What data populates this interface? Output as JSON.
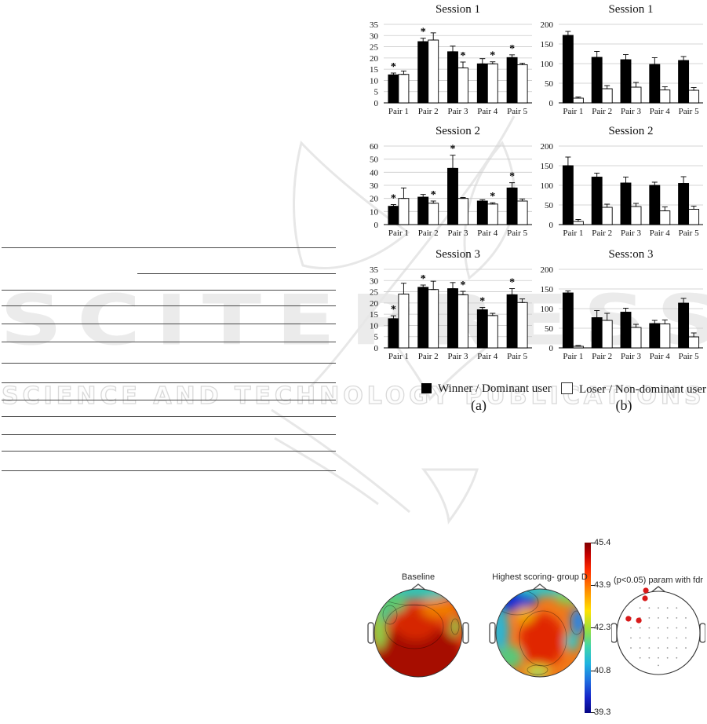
{
  "watermark": {
    "brand": "SCITEPRESS",
    "tagline": "SCIENCE AND TECHNOLOGY PUBLICATIONS",
    "color": "#ebebeb"
  },
  "figure1": {
    "legend": [
      {
        "label": "Winner / Dominant user",
        "fill": "#000000"
      },
      {
        "label": "Loser / Non-dominant user",
        "fill": "#ffffff"
      }
    ],
    "sublabels": [
      "(a)",
      "(b)"
    ]
  },
  "chart_data": [
    {
      "id": "a1",
      "col": "a",
      "row": 1,
      "type": "bar",
      "title": "Session 1",
      "categories": [
        "Pair 1",
        "Pair 2",
        "Pair 3",
        "Pair 4",
        "Pair 5"
      ],
      "ylim": [
        0,
        35
      ],
      "yticks": [
        0,
        5,
        10,
        15,
        20,
        25,
        30,
        35
      ],
      "grid": true,
      "legend_position": "below",
      "series": [
        {
          "name": "Winner / Dominant user",
          "fill": "#000000",
          "values": [
            12.5,
            27.3,
            22.8,
            17.4,
            20.2
          ],
          "errors": [
            0.8,
            1.5,
            2.5,
            2.3,
            1.2
          ]
        },
        {
          "name": "Loser / Non-dominant user",
          "fill": "#ffffff",
          "values": [
            12.7,
            28,
            15.6,
            17.4,
            17
          ],
          "errors": [
            1.5,
            3.2,
            2.6,
            0.9,
            0.7
          ]
        }
      ],
      "stars": [
        {
          "pair": 0,
          "series": 0
        },
        {
          "pair": 1,
          "series": 0
        },
        {
          "pair": 2,
          "series": 1
        },
        {
          "pair": 3,
          "series": 1
        },
        {
          "pair": 4,
          "series": 0
        }
      ]
    },
    {
      "id": "b1",
      "col": "b",
      "row": 1,
      "type": "bar",
      "title": "Session 1",
      "categories": [
        "Pair 1",
        "Pair 2",
        "Pair 3",
        "Pair 4",
        "Pair 5"
      ],
      "ylim": [
        0,
        200
      ],
      "yticks": [
        0,
        50,
        100,
        150,
        200
      ],
      "grid": true,
      "series": [
        {
          "name": "Winner / Dominant user",
          "fill": "#000000",
          "values": [
            172,
            116,
            110,
            98,
            108
          ],
          "errors": [
            10,
            15,
            13,
            17,
            10
          ]
        },
        {
          "name": "Loser / Non-dominant user",
          "fill": "#ffffff",
          "values": [
            12,
            36,
            40,
            33,
            32
          ],
          "errors": [
            3,
            8,
            12,
            8,
            7
          ]
        }
      ],
      "stars": []
    },
    {
      "id": "a2",
      "col": "a",
      "row": 2,
      "type": "bar",
      "title": "Session 2",
      "categories": [
        "Pair 1",
        "Pair 2",
        "Pair 3",
        "Pair 4",
        "Pair 5"
      ],
      "ylim": [
        0,
        60
      ],
      "yticks": [
        0,
        10,
        20,
        30,
        40,
        50,
        60
      ],
      "grid": true,
      "series": [
        {
          "name": "Winner / Dominant user",
          "fill": "#000000",
          "values": [
            14,
            21,
            43,
            18,
            28
          ],
          "errors": [
            1.3,
            2,
            10,
            1,
            4
          ]
        },
        {
          "name": "Loser / Non-dominant user",
          "fill": "#ffffff",
          "values": [
            20,
            16.3,
            20,
            15.7,
            18
          ],
          "errors": [
            8,
            1.7,
            0.7,
            1,
            1.5
          ]
        }
      ],
      "stars": [
        {
          "pair": 0,
          "series": 0
        },
        {
          "pair": 1,
          "series": 1
        },
        {
          "pair": 2,
          "series": 0
        },
        {
          "pair": 3,
          "series": 1
        },
        {
          "pair": 4,
          "series": 0
        }
      ]
    },
    {
      "id": "b2",
      "col": "b",
      "row": 2,
      "type": "bar",
      "title": "Session 2",
      "categories": [
        "Pair 1",
        "Pair 2",
        "Pair 3",
        "Pair 4",
        "Pair 5"
      ],
      "ylim": [
        0,
        200
      ],
      "yticks": [
        0,
        50,
        100,
        150,
        200
      ],
      "grid": true,
      "series": [
        {
          "name": "Winner / Dominant user",
          "fill": "#000000",
          "values": [
            150,
            121,
            106,
            100,
            105
          ],
          "errors": [
            22,
            10,
            15,
            8,
            17
          ]
        },
        {
          "name": "Loser / Non-dominant user",
          "fill": "#ffffff",
          "values": [
            8,
            44,
            46,
            35,
            39
          ],
          "errors": [
            5,
            8,
            8,
            10,
            8
          ]
        }
      ],
      "stars": []
    },
    {
      "id": "a3",
      "col": "a",
      "row": 3,
      "type": "bar",
      "title": "Session 3",
      "categories": [
        "Pair 1",
        "Pair 2",
        "Pair 3",
        "Pair 4",
        "Pair 5"
      ],
      "ylim": [
        0,
        35
      ],
      "yticks": [
        0,
        5,
        10,
        15,
        20,
        25,
        30,
        35
      ],
      "grid": true,
      "series": [
        {
          "name": "Winner / Dominant user",
          "fill": "#000000",
          "values": [
            13,
            27,
            26.4,
            17,
            23.7
          ],
          "errors": [
            1.3,
            1,
            2.7,
            1,
            2.7
          ]
        },
        {
          "name": "Loser / Non-dominant user",
          "fill": "#ffffff",
          "values": [
            24,
            26,
            23.7,
            14.4,
            20.2
          ],
          "errors": [
            4.8,
            3.7,
            1.5,
            1,
            1.6
          ]
        }
      ],
      "stars": [
        {
          "pair": 0,
          "series": 0
        },
        {
          "pair": 1,
          "series": 0
        },
        {
          "pair": 2,
          "series": 1
        },
        {
          "pair": 3,
          "series": 0
        },
        {
          "pair": 4,
          "series": 0
        }
      ]
    },
    {
      "id": "b3",
      "col": "b",
      "row": 3,
      "type": "bar",
      "title": "Sess:on 3",
      "categories": [
        "Pair 1",
        "Pair 2",
        "Pair 3",
        "Pair 4",
        "Pair 5"
      ],
      "ylim": [
        0,
        200
      ],
      "yticks": [
        0,
        50,
        100,
        150,
        200
      ],
      "grid": true,
      "series": [
        {
          "name": "Winner / Dominant user",
          "fill": "#000000",
          "values": [
            140,
            77,
            91,
            62,
            114
          ],
          "errors": [
            5,
            18,
            10,
            8,
            12
          ]
        },
        {
          "name": "Loser / Non-dominant user",
          "fill": "#ffffff",
          "values": [
            4,
            70,
            52,
            61,
            28
          ],
          "errors": [
            2,
            18,
            8,
            10,
            10
          ]
        }
      ],
      "stars": []
    }
  ],
  "figure2": {
    "maps": [
      {
        "title": "Baseline",
        "style": "heatmap"
      },
      {
        "title": "Highest scoring- group D",
        "style": "heatmap"
      },
      {
        "title": "(p<0.05) param with fdr",
        "style": "electrodes",
        "dot_color": "#d81a1a",
        "significant_dots": [
          [
            -0.3,
            -1.02
          ],
          [
            -0.32,
            -0.83
          ],
          [
            -0.72,
            -0.34
          ],
          [
            -0.47,
            -0.3
          ]
        ]
      }
    ],
    "colorbar": {
      "ticks": [
        "45.4",
        "43.9",
        "42.3",
        "40.8",
        "39.3"
      ],
      "max": 45.4,
      "min": 39.3
    }
  }
}
